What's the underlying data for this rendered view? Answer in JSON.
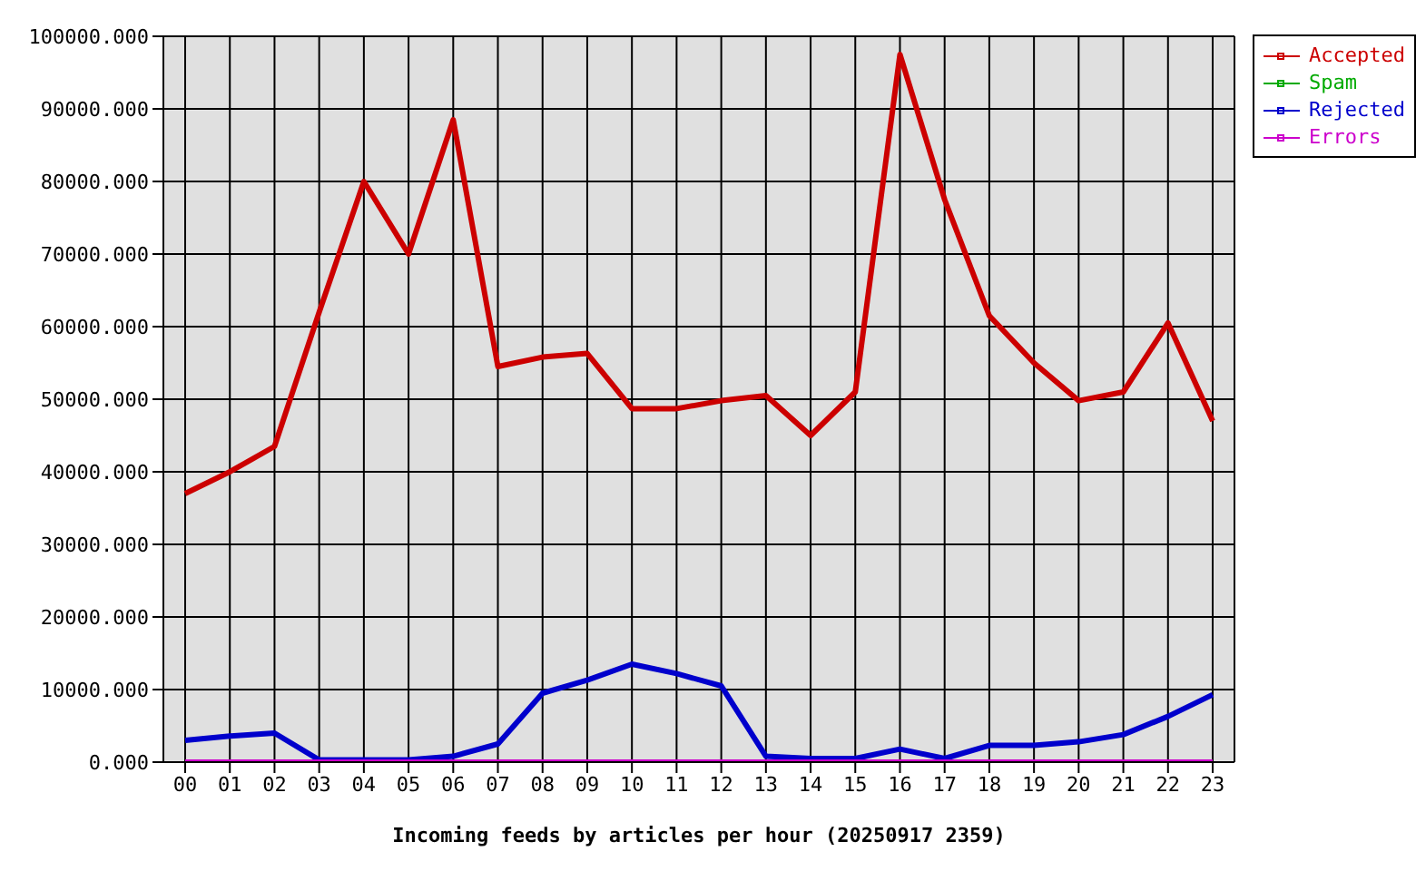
{
  "chart_data": {
    "type": "line",
    "xlabel": "Incoming feeds by articles per hour (20250917 2359)",
    "categories": [
      "00",
      "01",
      "02",
      "03",
      "04",
      "05",
      "06",
      "07",
      "08",
      "09",
      "10",
      "11",
      "12",
      "13",
      "14",
      "15",
      "16",
      "17",
      "18",
      "19",
      "20",
      "21",
      "22",
      "23"
    ],
    "series": [
      {
        "name": "Accepted",
        "color": "#cc0000",
        "values": [
          37000,
          40000,
          43500,
          62000,
          80000,
          70000,
          88500,
          54500,
          55800,
          56300,
          48700,
          48700,
          49800,
          50500,
          45000,
          51000,
          97500,
          77500,
          61500,
          55000,
          49800,
          51000,
          60500,
          47000
        ]
      },
      {
        "name": "Spam",
        "color": "#00aa00",
        "values": [
          null,
          null,
          null,
          null,
          null,
          null,
          null,
          null,
          null,
          null,
          null,
          null,
          null,
          null,
          null,
          null,
          null,
          null,
          null,
          null,
          null,
          null,
          null,
          null
        ]
      },
      {
        "name": "Rejected",
        "color": "#0000cc",
        "values": [
          3000,
          3600,
          4000,
          300,
          300,
          300,
          800,
          2500,
          9500,
          11300,
          13500,
          12200,
          10500,
          800,
          500,
          500,
          1800,
          500,
          2300,
          2300,
          2800,
          3800,
          6300,
          9300
        ]
      },
      {
        "name": "Errors",
        "color": "#cc00cc",
        "values": [
          0,
          0,
          0,
          0,
          0,
          0,
          0,
          0,
          0,
          0,
          0,
          0,
          0,
          0,
          0,
          0,
          0,
          0,
          0,
          0,
          0,
          0,
          0,
          0
        ]
      }
    ],
    "ylim": [
      0,
      100000
    ],
    "yticks": [
      {
        "value": 0,
        "label": "0.000"
      },
      {
        "value": 10000,
        "label": "10000.000"
      },
      {
        "value": 20000,
        "label": "20000.000"
      },
      {
        "value": 30000,
        "label": "30000.000"
      },
      {
        "value": 40000,
        "label": "40000.000"
      },
      {
        "value": 50000,
        "label": "50000.000"
      },
      {
        "value": 60000,
        "label": "60000.000"
      },
      {
        "value": 70000,
        "label": "70000.000"
      },
      {
        "value": 80000,
        "label": "80000.000"
      },
      {
        "value": 90000,
        "label": "90000.000"
      },
      {
        "value": 100000,
        "label": "100000.000"
      }
    ],
    "grid": true,
    "legend": "top right",
    "line_style": "solid"
  }
}
